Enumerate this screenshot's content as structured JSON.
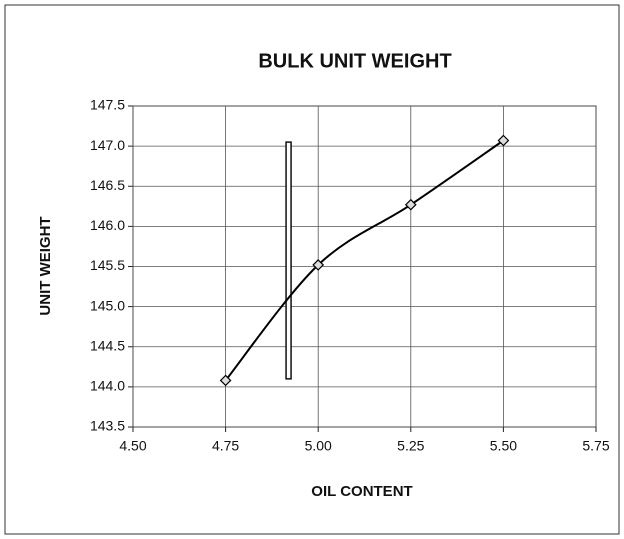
{
  "chart_data": {
    "type": "line",
    "title": "BULK UNIT WEIGHT",
    "xlabel": "OIL CONTENT",
    "ylabel": "UNIT WEIGHT",
    "x": [
      4.75,
      5.0,
      5.25,
      5.5
    ],
    "values": [
      144.08,
      145.52,
      146.27,
      147.07
    ],
    "color": "#000000",
    "marker_line": {
      "x": 4.92,
      "y": [
        144.1,
        147.05
      ]
    },
    "xlim": [
      4.5,
      5.75
    ],
    "ylim": [
      143.5,
      147.5
    ],
    "xticks": [
      {
        "value": 4.5,
        "label": "4.50"
      },
      4.75,
      {
        "value": 5.0,
        "label": "5.00"
      },
      5.25,
      {
        "value": 5.5,
        "label": "5.50"
      },
      5.75
    ],
    "yticks": [
      143.5,
      {
        "value": 144.0,
        "label": "144.0"
      },
      144.5,
      {
        "value": 145.0,
        "label": "145.0"
      },
      145.5,
      {
        "value": 146.0,
        "label": "146.0"
      },
      146.5,
      {
        "value": 147.0,
        "label": "147.0"
      },
      147.5
    ],
    "grid": true
  }
}
